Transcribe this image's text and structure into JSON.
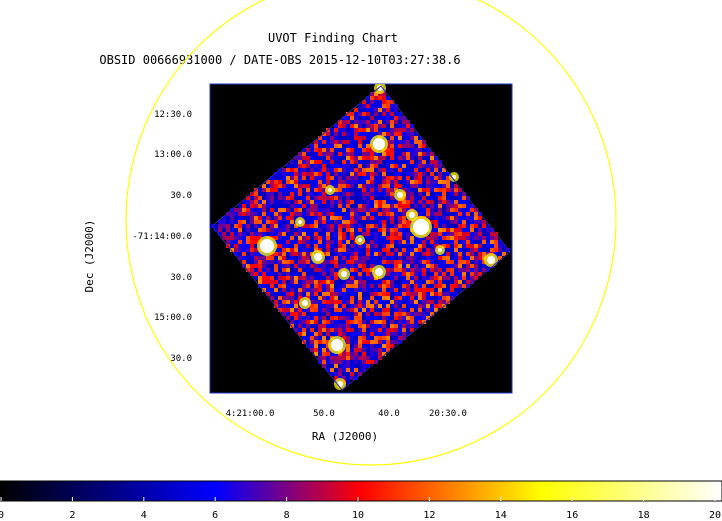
{
  "chart_data": {
    "type": "heatmap",
    "title": "UVOT Finding Chart",
    "subtitle": "OBSID 00666931000 / DATE-OBS 2015-12-10T03:27:38.6",
    "xlabel": "RA (J2000)",
    "ylabel": "Dec (J2000)",
    "x_ticks": [
      "4:21:00.0",
      "50.0",
      "40.0",
      "20:30.0"
    ],
    "y_ticks": [
      "12:30.0",
      "13:00.0",
      "30.0",
      "-71:14:00.0",
      "30.0",
      "15:00.0",
      "30.0"
    ],
    "colorbar": {
      "min": 0,
      "max": 20,
      "ticks": [
        "0",
        "2",
        "4",
        "6",
        "8",
        "10",
        "12",
        "14",
        "16",
        "18",
        "20"
      ],
      "colormap": [
        "#000000",
        "#0000ff",
        "#ff0000",
        "#ffff00",
        "#ffffff"
      ]
    },
    "grid": false,
    "circle_color": "#ffff00"
  }
}
